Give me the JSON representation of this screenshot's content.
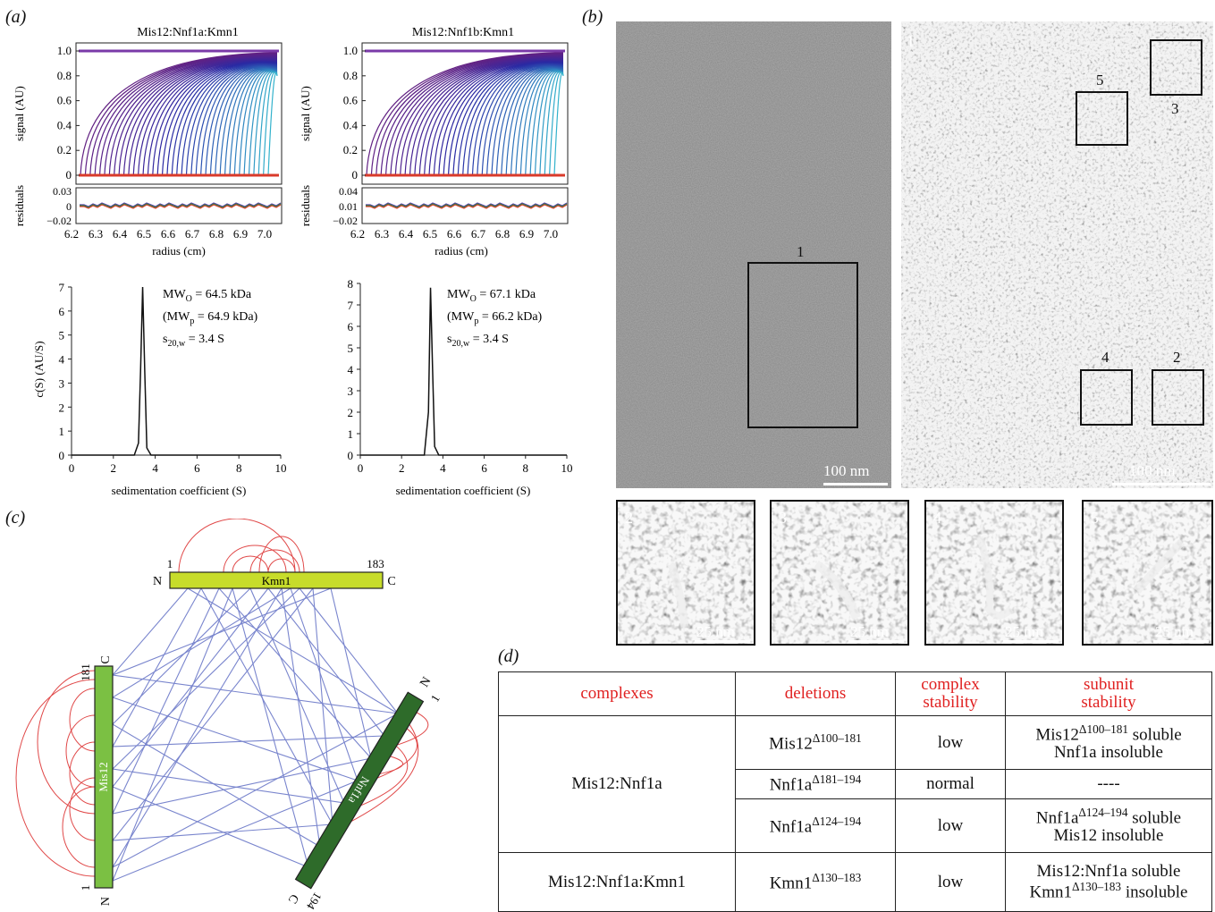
{
  "panel_labels": {
    "a": "(a)",
    "b": "(b)",
    "c": "(c)",
    "d": "(d)"
  },
  "panel_a": {
    "auc_left": {
      "title": "Mis12:Nnf1a:Kmn1",
      "ylabel": "signal (AU)",
      "reslabel": "residuals",
      "yticks": [
        "1.0",
        "0.8",
        "0.6",
        "0.4",
        "0.2",
        "0"
      ],
      "resticks": [
        "0.03",
        "0",
        "−0.02"
      ],
      "xticks": [
        "6.2",
        "6.3",
        "6.4",
        "6.5",
        "6.6",
        "6.7",
        "6.8",
        "6.9",
        "7.0"
      ],
      "xlabel": "radius (cm)"
    },
    "auc_right": {
      "title": "Mis12:Nnf1b:Kmn1",
      "ylabel": "signal (AU)",
      "reslabel": "residuals",
      "yticks": [
        "1.0",
        "0.8",
        "0.6",
        "0.4",
        "0.2",
        "0"
      ],
      "resticks": [
        "0.04",
        "0.01",
        "−0.02"
      ],
      "xticks": [
        "6.2",
        "6.3",
        "6.4",
        "6.5",
        "6.6",
        "6.7",
        "6.8",
        "6.9",
        "7.0"
      ],
      "xlabel": "radius (cm)"
    },
    "cs_left": {
      "ylabel": "c(S) (AU/S)",
      "xlabel": "sedimentation coefficient (S)",
      "mwo": "MW",
      "mwo_sub": "O",
      "mwo_val": " = 64.5 kDa",
      "mwp": "(MW",
      "mwp_sub": "p",
      "mwp_val": " = 64.9 kDa)",
      "s20": "s",
      "s20_sub": "20,w",
      "s20_val": " = 3.4 S"
    },
    "cs_right": {
      "ylabel": "",
      "xlabel": "sedimentation coefficient (S)",
      "mwo": "MW",
      "mwo_sub": "O",
      "mwo_val": " = 67.1 kDa",
      "mwp": "(MW",
      "mwp_sub": "p",
      "mwp_val": " = 66.2 kDa)",
      "s20": "s",
      "s20_sub": "20,w",
      "s20_val": " = 3.4 S"
    }
  },
  "chart_data": [
    {
      "type": "line",
      "title": "",
      "xlabel": "sedimentation coefficient (S)",
      "ylabel": "c(S) (AU/S)",
      "xlim": [
        0,
        10
      ],
      "ylim": [
        0,
        7
      ],
      "xticks": [
        0,
        2,
        4,
        6,
        8,
        10
      ],
      "yticks": [
        0,
        1,
        2,
        3,
        4,
        5,
        6,
        7
      ],
      "x": [
        0,
        3.0,
        3.2,
        3.3,
        3.4,
        3.5,
        3.6,
        3.8,
        10
      ],
      "y": [
        0,
        0,
        0.5,
        3.5,
        7.0,
        3.5,
        0.3,
        0,
        0
      ]
    },
    {
      "type": "line",
      "title": "",
      "xlabel": "sedimentation coefficient (S)",
      "ylabel": "",
      "xlim": [
        0,
        10
      ],
      "ylim": [
        0,
        8
      ],
      "xticks": [
        0,
        2,
        4,
        6,
        8,
        10
      ],
      "yticks": [
        0,
        1,
        2,
        3,
        4,
        5,
        6,
        7,
        8
      ],
      "x": [
        0,
        3.1,
        3.3,
        3.4,
        3.5,
        3.6,
        3.8,
        10
      ],
      "y": [
        0,
        0,
        2.0,
        7.8,
        4.0,
        0.4,
        0,
        0
      ]
    }
  ],
  "panel_b": {
    "scale_main_left": "100 nm",
    "scale_main_right": "100 nm",
    "box1_label": "1",
    "right_num": "1",
    "box_labels": {
      "b2": "2",
      "b3": "3",
      "b4": "4",
      "b5": "5"
    },
    "crops": [
      {
        "num": "2",
        "scale": "25 nm"
      },
      {
        "num": "3",
        "scale": "25 nm"
      },
      {
        "num": "4",
        "scale": "25 nm"
      },
      {
        "num": "5",
        "scale": "25 nm"
      }
    ]
  },
  "panel_c": {
    "kmn1": {
      "name": "Kmn1",
      "start": "1",
      "end": "183",
      "n": "N",
      "c": "C"
    },
    "mis12": {
      "name": "Mis12",
      "end": "181",
      "n": "N",
      "c": "C",
      "start": "1"
    },
    "nnf1a": {
      "name": "Nnf1a",
      "start": "1",
      "end": "194",
      "n": "N",
      "c": "C"
    }
  },
  "panel_d": {
    "headers": {
      "complexes": "complexes",
      "deletions": "deletions",
      "cstab1": "complex",
      "cstab2": "stability",
      "sstab1": "subunit",
      "sstab2": "stability"
    },
    "g1_name": "Mis12:Nnf1a",
    "r1": {
      "del_base": "Mis12",
      "del_sup": "Δ100–181",
      "stab": "low",
      "sub1_base": "Mis12",
      "sub1_sup": "Δ100–181",
      "sub1_tail": " soluble",
      "sub2": "Nnf1a insoluble"
    },
    "r2": {
      "del_base": "Nnf1a",
      "del_sup": "Δ181–194",
      "stab": "normal",
      "sub": "----"
    },
    "r3": {
      "del_base": "Nnf1a",
      "del_sup": "Δ124–194",
      "stab": "low",
      "sub1_base": "Nnf1a",
      "sub1_sup": "Δ124–194",
      "sub1_tail": " soluble",
      "sub2": "Mis12 insoluble"
    },
    "g2_name": "Mis12:Nnf1a:Kmn1",
    "r4": {
      "del_base": "Kmn1",
      "del_sup": "Δ130–183",
      "stab": "low",
      "sub1": "Mis12:Nnf1a soluble",
      "sub2_base": "Kmn1",
      "sub2_sup": "Δ130–183",
      "sub2_tail": " insoluble"
    }
  },
  "colors": {
    "kmn1": "#c7dc2b",
    "mis12": "#7bc043",
    "nnf1a": "#2e6b2a",
    "crosslink_inter": "#6b78c8",
    "crosslink_intra": "#e04848",
    "table_header": "#e02020"
  }
}
